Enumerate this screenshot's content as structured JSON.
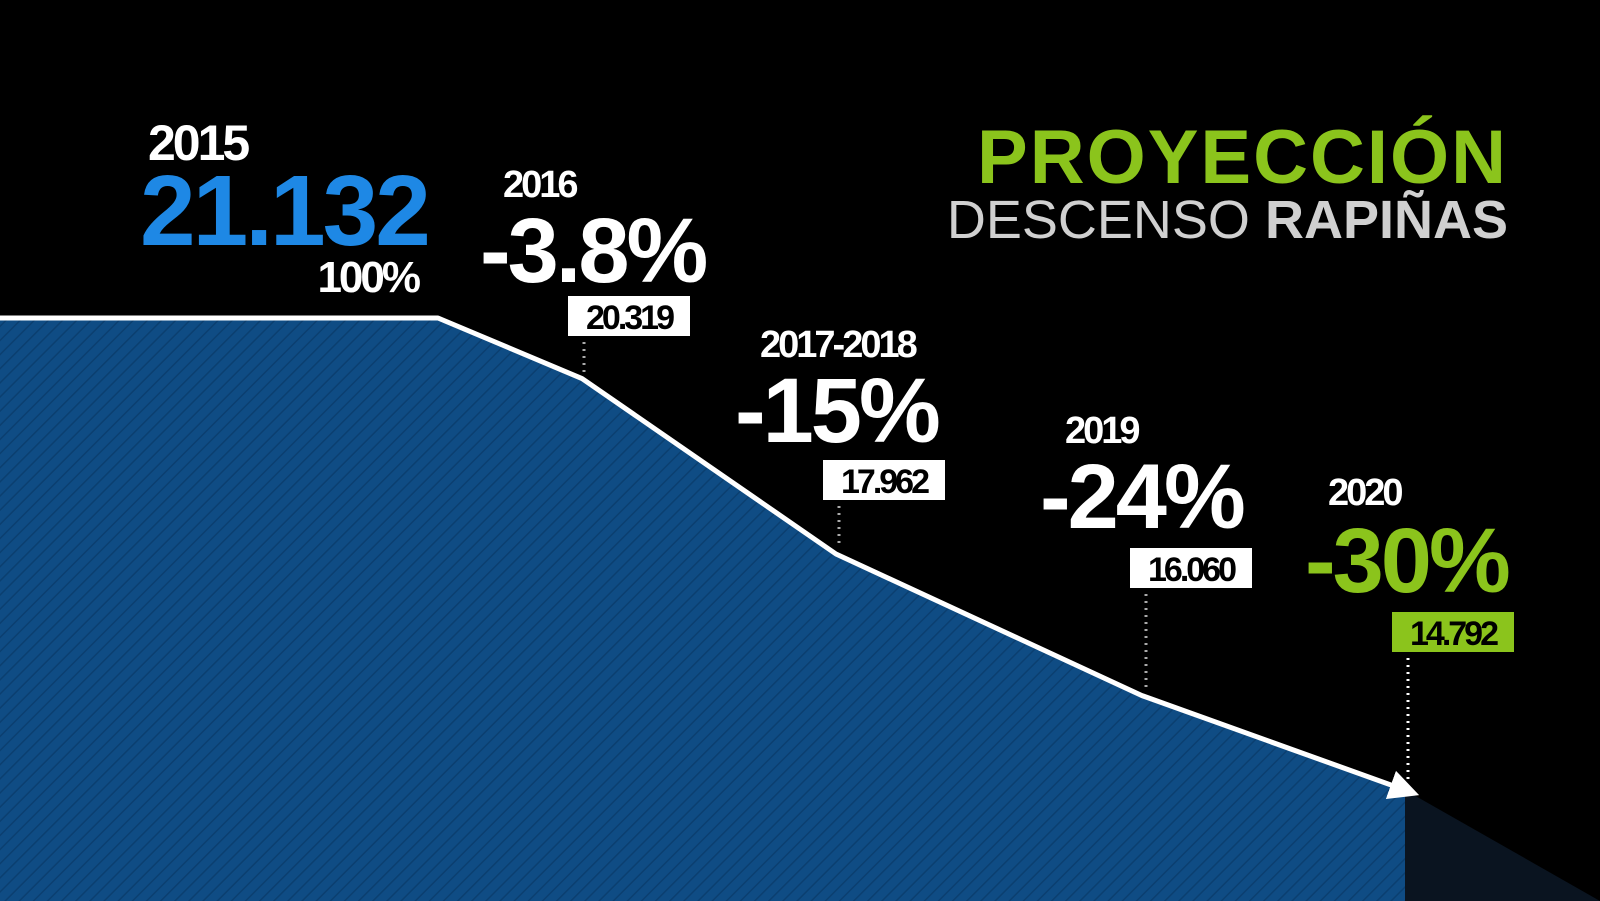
{
  "chart_data": {
    "type": "area",
    "title": "PROYECCIÓN",
    "subtitle": [
      "DESCENSO",
      "RAPIÑAS"
    ],
    "categories": [
      "2015",
      "2016",
      "2017-2018",
      "2019",
      "2020"
    ],
    "values": [
      21132,
      20319,
      17962,
      16060,
      14792
    ],
    "value_labels": [
      "21.132",
      "20.319",
      "17.962",
      "16.060",
      "14.792"
    ],
    "change_labels": [
      "100%",
      "-3.8%",
      "-15%",
      "-24%",
      "-30%"
    ],
    "color": "#0f4c84",
    "line_color": "#ffffff",
    "first_color": "#1e88e5",
    "last_color": "#8bc41c"
  }
}
